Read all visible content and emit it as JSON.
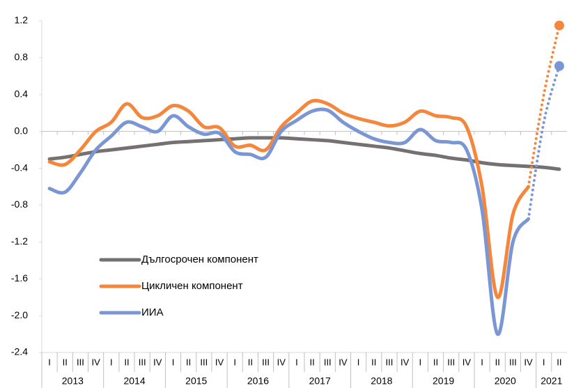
{
  "chart_data": {
    "type": "line",
    "categories": [
      "I",
      "II",
      "III",
      "IV",
      "I",
      "II",
      "III",
      "IV",
      "I",
      "II",
      "III",
      "IV",
      "I",
      "II",
      "III",
      "IV",
      "I",
      "II",
      "III",
      "IV",
      "I",
      "II",
      "III",
      "IV",
      "I",
      "II",
      "III",
      "IV",
      "I",
      "II",
      "III",
      "IV",
      "I",
      "II"
    ],
    "category_groups": [
      "2013",
      "2014",
      "2015",
      "2016",
      "2017",
      "2018",
      "2019",
      "2020",
      "2021"
    ],
    "series": [
      {
        "name": "Дългосрочен компонент",
        "color": "#767171",
        "values": [
          -0.3,
          -0.28,
          -0.25,
          -0.22,
          -0.2,
          -0.18,
          -0.16,
          -0.14,
          -0.12,
          -0.11,
          -0.1,
          -0.09,
          -0.08,
          -0.07,
          -0.07,
          -0.07,
          -0.08,
          -0.09,
          -0.1,
          -0.12,
          -0.14,
          -0.16,
          -0.18,
          -0.21,
          -0.24,
          -0.26,
          -0.29,
          -0.31,
          -0.34,
          -0.36,
          -0.37,
          -0.38,
          -0.39,
          -0.41
        ]
      },
      {
        "name": "Цикличен компонент",
        "color": "#f4873b",
        "dotted_from_index": 31,
        "end_marker": true,
        "values": [
          -0.33,
          -0.36,
          -0.2,
          0.0,
          0.1,
          0.3,
          0.15,
          0.17,
          0.28,
          0.22,
          0.05,
          0.04,
          -0.16,
          -0.15,
          -0.2,
          0.05,
          0.2,
          0.33,
          0.3,
          0.2,
          0.14,
          0.1,
          0.06,
          0.1,
          0.22,
          0.17,
          0.15,
          0.05,
          -0.6,
          -1.8,
          -0.9,
          -0.6,
          0.4,
          1.15
        ]
      },
      {
        "name": "ИИА",
        "color": "#7b96d4",
        "dotted_from_index": 31,
        "end_marker": true,
        "values": [
          -0.62,
          -0.66,
          -0.45,
          -0.2,
          -0.05,
          0.1,
          0.05,
          0.0,
          0.17,
          0.05,
          -0.03,
          -0.02,
          -0.22,
          -0.25,
          -0.28,
          0.0,
          0.12,
          0.22,
          0.23,
          0.1,
          0.0,
          -0.08,
          -0.12,
          -0.12,
          0.02,
          -0.1,
          -0.12,
          -0.2,
          -0.85,
          -2.2,
          -1.2,
          -0.95,
          0.1,
          0.71
        ]
      }
    ],
    "ylim": [
      -2.4,
      1.2
    ],
    "yticks": [
      -2.4,
      {
        "value": -2,
        "label": "-2.0"
      },
      -1.6,
      -1.2,
      -0.8,
      -0.4,
      {
        "value": 0,
        "label": "0.0"
      },
      0.4,
      0.8,
      1.2
    ],
    "legend": "lower left"
  }
}
